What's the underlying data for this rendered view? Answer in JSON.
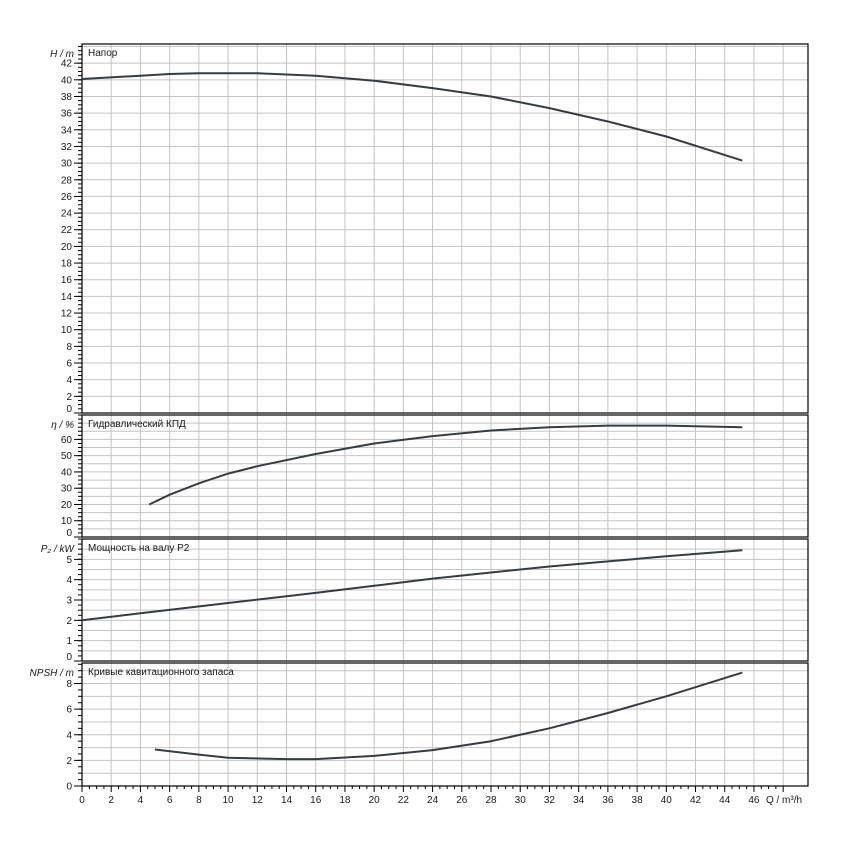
{
  "chart_data": {
    "type": "line",
    "xlabel": "Q / m³/h",
    "xlim": [
      0,
      49.7
    ],
    "xticks": [
      0,
      2,
      4,
      6,
      8,
      10,
      12,
      14,
      16,
      18,
      20,
      22,
      24,
      26,
      28,
      30,
      32,
      34,
      36,
      38,
      40,
      42,
      44,
      46
    ],
    "grid": true,
    "panels": [
      {
        "title": "Напор",
        "ylabel": "H / m",
        "ylim": [
          0,
          44.3
        ],
        "yticks": [
          0,
          2,
          4,
          6,
          8,
          10,
          12,
          14,
          16,
          18,
          20,
          22,
          24,
          26,
          28,
          30,
          32,
          34,
          36,
          38,
          40,
          42
        ],
        "grid_step": 2,
        "series": {
          "name": "H",
          "x": [
            0,
            4,
            6,
            8,
            12,
            16,
            20,
            24,
            28,
            32,
            36,
            40,
            45.2
          ],
          "y": [
            40.1,
            40.5,
            40.7,
            40.8,
            40.8,
            40.5,
            39.9,
            39.0,
            38.0,
            36.6,
            35.0,
            33.2,
            30.3
          ]
        }
      },
      {
        "title": "Гидравлический КПД",
        "ylabel": "η / %",
        "ylim": [
          0,
          75
        ],
        "yticks": [
          0,
          10,
          20,
          30,
          40,
          50,
          60
        ],
        "grid_step": 5,
        "series": {
          "name": "η",
          "x": [
            4.6,
            6,
            8,
            10,
            12,
            16,
            20,
            24,
            28,
            32,
            36,
            40,
            45.2
          ],
          "y": [
            20,
            26,
            33,
            39,
            43.5,
            51,
            57.5,
            62,
            65.5,
            67.5,
            68.5,
            68.5,
            67.5
          ]
        }
      },
      {
        "title": "Мощность на валу P2",
        "ylabel": "P₂ / kW",
        "ylim": [
          0,
          6
        ],
        "yticks": [
          0,
          1,
          2,
          3,
          4,
          5
        ],
        "grid_step": 0.5,
        "series": {
          "name": "P2",
          "x": [
            0,
            4,
            10,
            16,
            20,
            24,
            28,
            32,
            36,
            40,
            45.2
          ],
          "y": [
            2.0,
            2.35,
            2.85,
            3.35,
            3.7,
            4.05,
            4.35,
            4.65,
            4.9,
            5.15,
            5.45
          ]
        }
      },
      {
        "title": "Кривые кавитационного запаса",
        "ylabel": "NPSH / m",
        "ylim": [
          0,
          9.6
        ],
        "yticks": [
          0,
          2,
          4,
          6,
          8
        ],
        "grid_step": 1,
        "series": {
          "name": "NPSH",
          "x": [
            5,
            8,
            10,
            14,
            16,
            20,
            24,
            28,
            32,
            36,
            40,
            45.2
          ],
          "y": [
            2.85,
            2.45,
            2.2,
            2.1,
            2.1,
            2.35,
            2.8,
            3.5,
            4.5,
            5.7,
            7.0,
            8.85
          ]
        }
      }
    ]
  }
}
